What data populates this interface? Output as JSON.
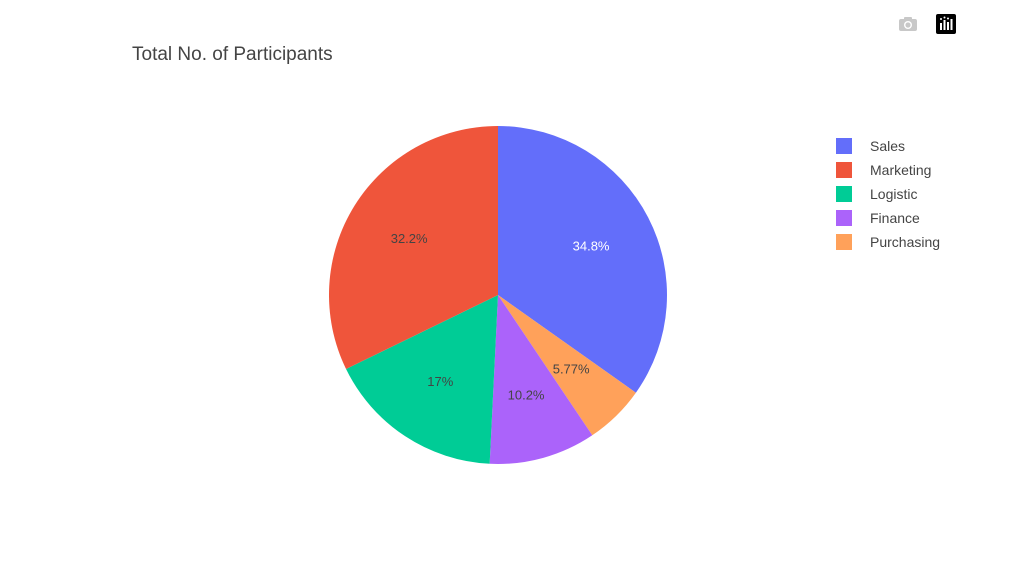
{
  "toolbar": {
    "camera_icon": "camera-icon",
    "plotly_logo": "plotly-logo-icon"
  },
  "chart_data": {
    "type": "pie",
    "title": "Total No. of Participants",
    "labels": [
      "Sales",
      "Marketing",
      "Logistic",
      "Finance",
      "Purchasing"
    ],
    "values": [
      34.8,
      32.2,
      17,
      10.2,
      5.77
    ],
    "text_labels": [
      "34.8%",
      "32.2%",
      "17%",
      "10.2%",
      "5.77%"
    ],
    "colors": [
      "#636efa",
      "#ef553b",
      "#00cc96",
      "#ab63fa",
      "#ffa15a"
    ],
    "slice_order": [
      0,
      4,
      3,
      2,
      1
    ],
    "label_colors": [
      "#ffffff",
      "#444444",
      "#444444",
      "#444444",
      "#444444"
    ],
    "legend_position": "right",
    "direction": "clockwise",
    "start": "top"
  }
}
